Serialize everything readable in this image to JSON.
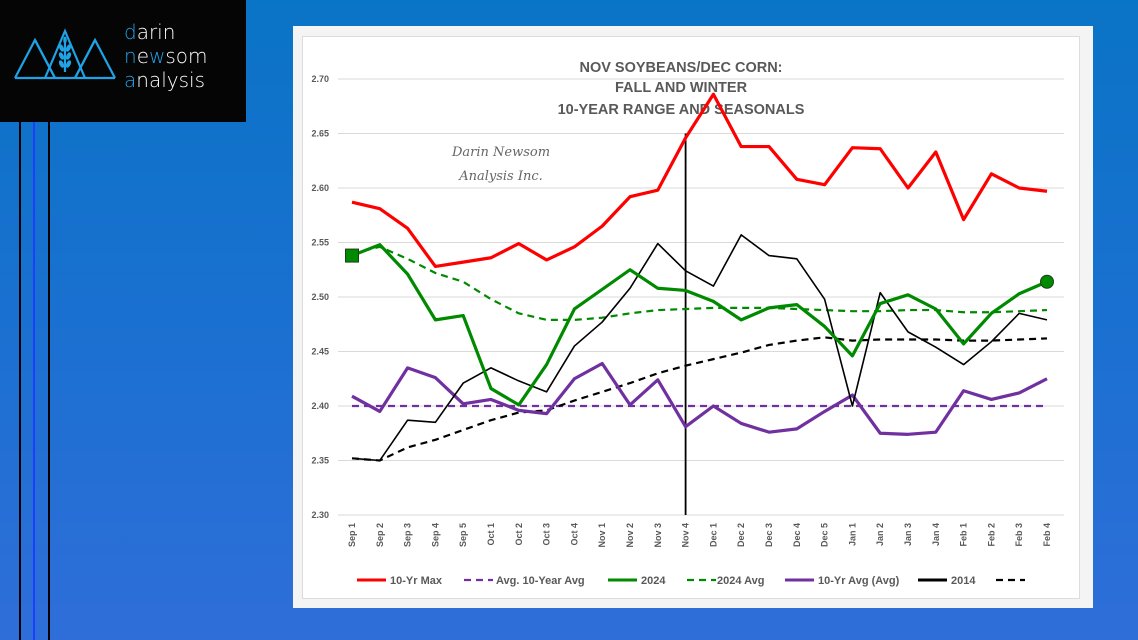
{
  "logo": {
    "lines": [
      {
        "first": "d",
        "rest": "arin"
      },
      {
        "first": "n",
        "mid": "e",
        "hl2": "w",
        "rest": "som"
      },
      {
        "first": "a",
        "rest": "nalysis"
      }
    ],
    "icon": "mountains-wheat-logo-icon",
    "accent": "#1fa3e6"
  },
  "decor": {
    "left_lines_colors": [
      "#000000",
      "#1a3fff",
      "#000000"
    ]
  },
  "chart_data": {
    "type": "line",
    "title": [
      "NOV SOYBEANS/DEC CORN:",
      "FALL AND WINTER",
      "10-YEAR RANGE AND SEASONALS"
    ],
    "watermark": [
      "Darin Newsom",
      "Analysis Inc."
    ],
    "xlabel": "",
    "ylabel": "",
    "ylim": [
      2.3,
      2.7
    ],
    "yticks": [
      "2.70",
      "2.65",
      "2.60",
      "2.55",
      "2.50",
      "2.45",
      "2.40",
      "2.35",
      "2.30"
    ],
    "grid": true,
    "legend_position": "bottom",
    "categories": [
      "Sep 1",
      "Sep 2",
      "Sep 3",
      "Sep 4",
      "Sep 5",
      "Oct 1",
      "Oct 2",
      "Oct 3",
      "Oct 4",
      "Nov 1",
      "Nov 2",
      "Nov 3",
      "Nov 4",
      "Dec 1",
      "Dec 2",
      "Dec 3",
      "Dec 4",
      "Dec 5",
      "Jan 1",
      "Jan 2",
      "Jan 3",
      "Jan 4",
      "Feb 1",
      "Feb 2",
      "Feb 3",
      "Feb 4"
    ],
    "vertical_marker": {
      "category": "Nov 4",
      "from": 2.3,
      "to": 2.65,
      "color": "#000000"
    },
    "series": [
      {
        "name": "10-Yr Max",
        "color": "#ff0000",
        "style": "solid",
        "width": "thick",
        "values": [
          2.587,
          2.581,
          2.563,
          2.528,
          2.532,
          2.536,
          2.549,
          2.534,
          2.546,
          2.565,
          2.592,
          2.598,
          2.646,
          2.686,
          2.638,
          2.638,
          2.608,
          2.603,
          2.637,
          2.636,
          2.6,
          2.633,
          2.571,
          2.613,
          2.6,
          2.597
        ]
      },
      {
        "name": "Avg. 10-Year Avg",
        "color": "#7030a0",
        "style": "dashed",
        "width": "medium",
        "values": [
          2.4,
          2.4,
          2.4,
          2.4,
          2.4,
          2.4,
          2.4,
          2.4,
          2.4,
          2.4,
          2.4,
          2.4,
          2.4,
          2.4,
          2.4,
          2.4,
          2.4,
          2.4,
          2.4,
          2.4,
          2.4,
          2.4,
          2.4,
          2.4,
          2.4,
          2.4
        ]
      },
      {
        "name": "2024",
        "color": "#008a00",
        "style": "solid",
        "width": "thick",
        "values": [
          2.538,
          2.548,
          2.521,
          2.479,
          2.483,
          2.416,
          2.401,
          2.438,
          2.489,
          2.507,
          2.525,
          2.508,
          2.506,
          2.496,
          2.479,
          2.49,
          2.493,
          2.473,
          2.446,
          2.494,
          2.502,
          2.489,
          2.457,
          2.485,
          2.503,
          2.514
        ],
        "start_marker": "square",
        "end_marker": "circle"
      },
      {
        "name": "2024 Avg",
        "color": "#008a00",
        "style": "dashed",
        "width": "medium",
        "values": [
          2.54,
          2.546,
          2.535,
          2.522,
          2.514,
          2.498,
          2.485,
          2.479,
          2.479,
          2.481,
          2.485,
          2.488,
          2.489,
          2.49,
          2.49,
          2.49,
          2.489,
          2.488,
          2.487,
          2.487,
          2.488,
          2.488,
          2.486,
          2.486,
          2.487,
          2.488
        ]
      },
      {
        "name": "10-Yr Avg (Avg)",
        "color": "#7030a0",
        "style": "solid",
        "width": "thick",
        "values": [
          2.409,
          2.395,
          2.435,
          2.426,
          2.402,
          2.406,
          2.396,
          2.393,
          2.425,
          2.439,
          2.401,
          2.424,
          2.381,
          2.4,
          2.384,
          2.376,
          2.379,
          2.395,
          2.41,
          2.375,
          2.374,
          2.376,
          2.414,
          2.406,
          2.412,
          2.425
        ]
      },
      {
        "name": "2014",
        "color": "#000000",
        "style": "solid",
        "width": "thin",
        "values": [
          2.352,
          2.35,
          2.387,
          2.385,
          2.421,
          2.435,
          2.423,
          2.413,
          2.455,
          2.477,
          2.508,
          2.549,
          2.524,
          2.51,
          2.557,
          2.538,
          2.535,
          2.498,
          2.4,
          2.504,
          2.468,
          2.454,
          2.438,
          2.459,
          2.485,
          2.479
        ]
      },
      {
        "name": "",
        "color": "#000000",
        "style": "dashed",
        "width": "medium",
        "values": [
          2.352,
          2.35,
          2.362,
          2.369,
          2.378,
          2.387,
          2.394,
          2.396,
          2.405,
          2.413,
          2.421,
          2.43,
          2.437,
          2.443,
          2.449,
          2.456,
          2.46,
          2.463,
          2.46,
          2.461,
          2.461,
          2.461,
          2.46,
          2.46,
          2.461,
          2.462
        ]
      }
    ]
  }
}
